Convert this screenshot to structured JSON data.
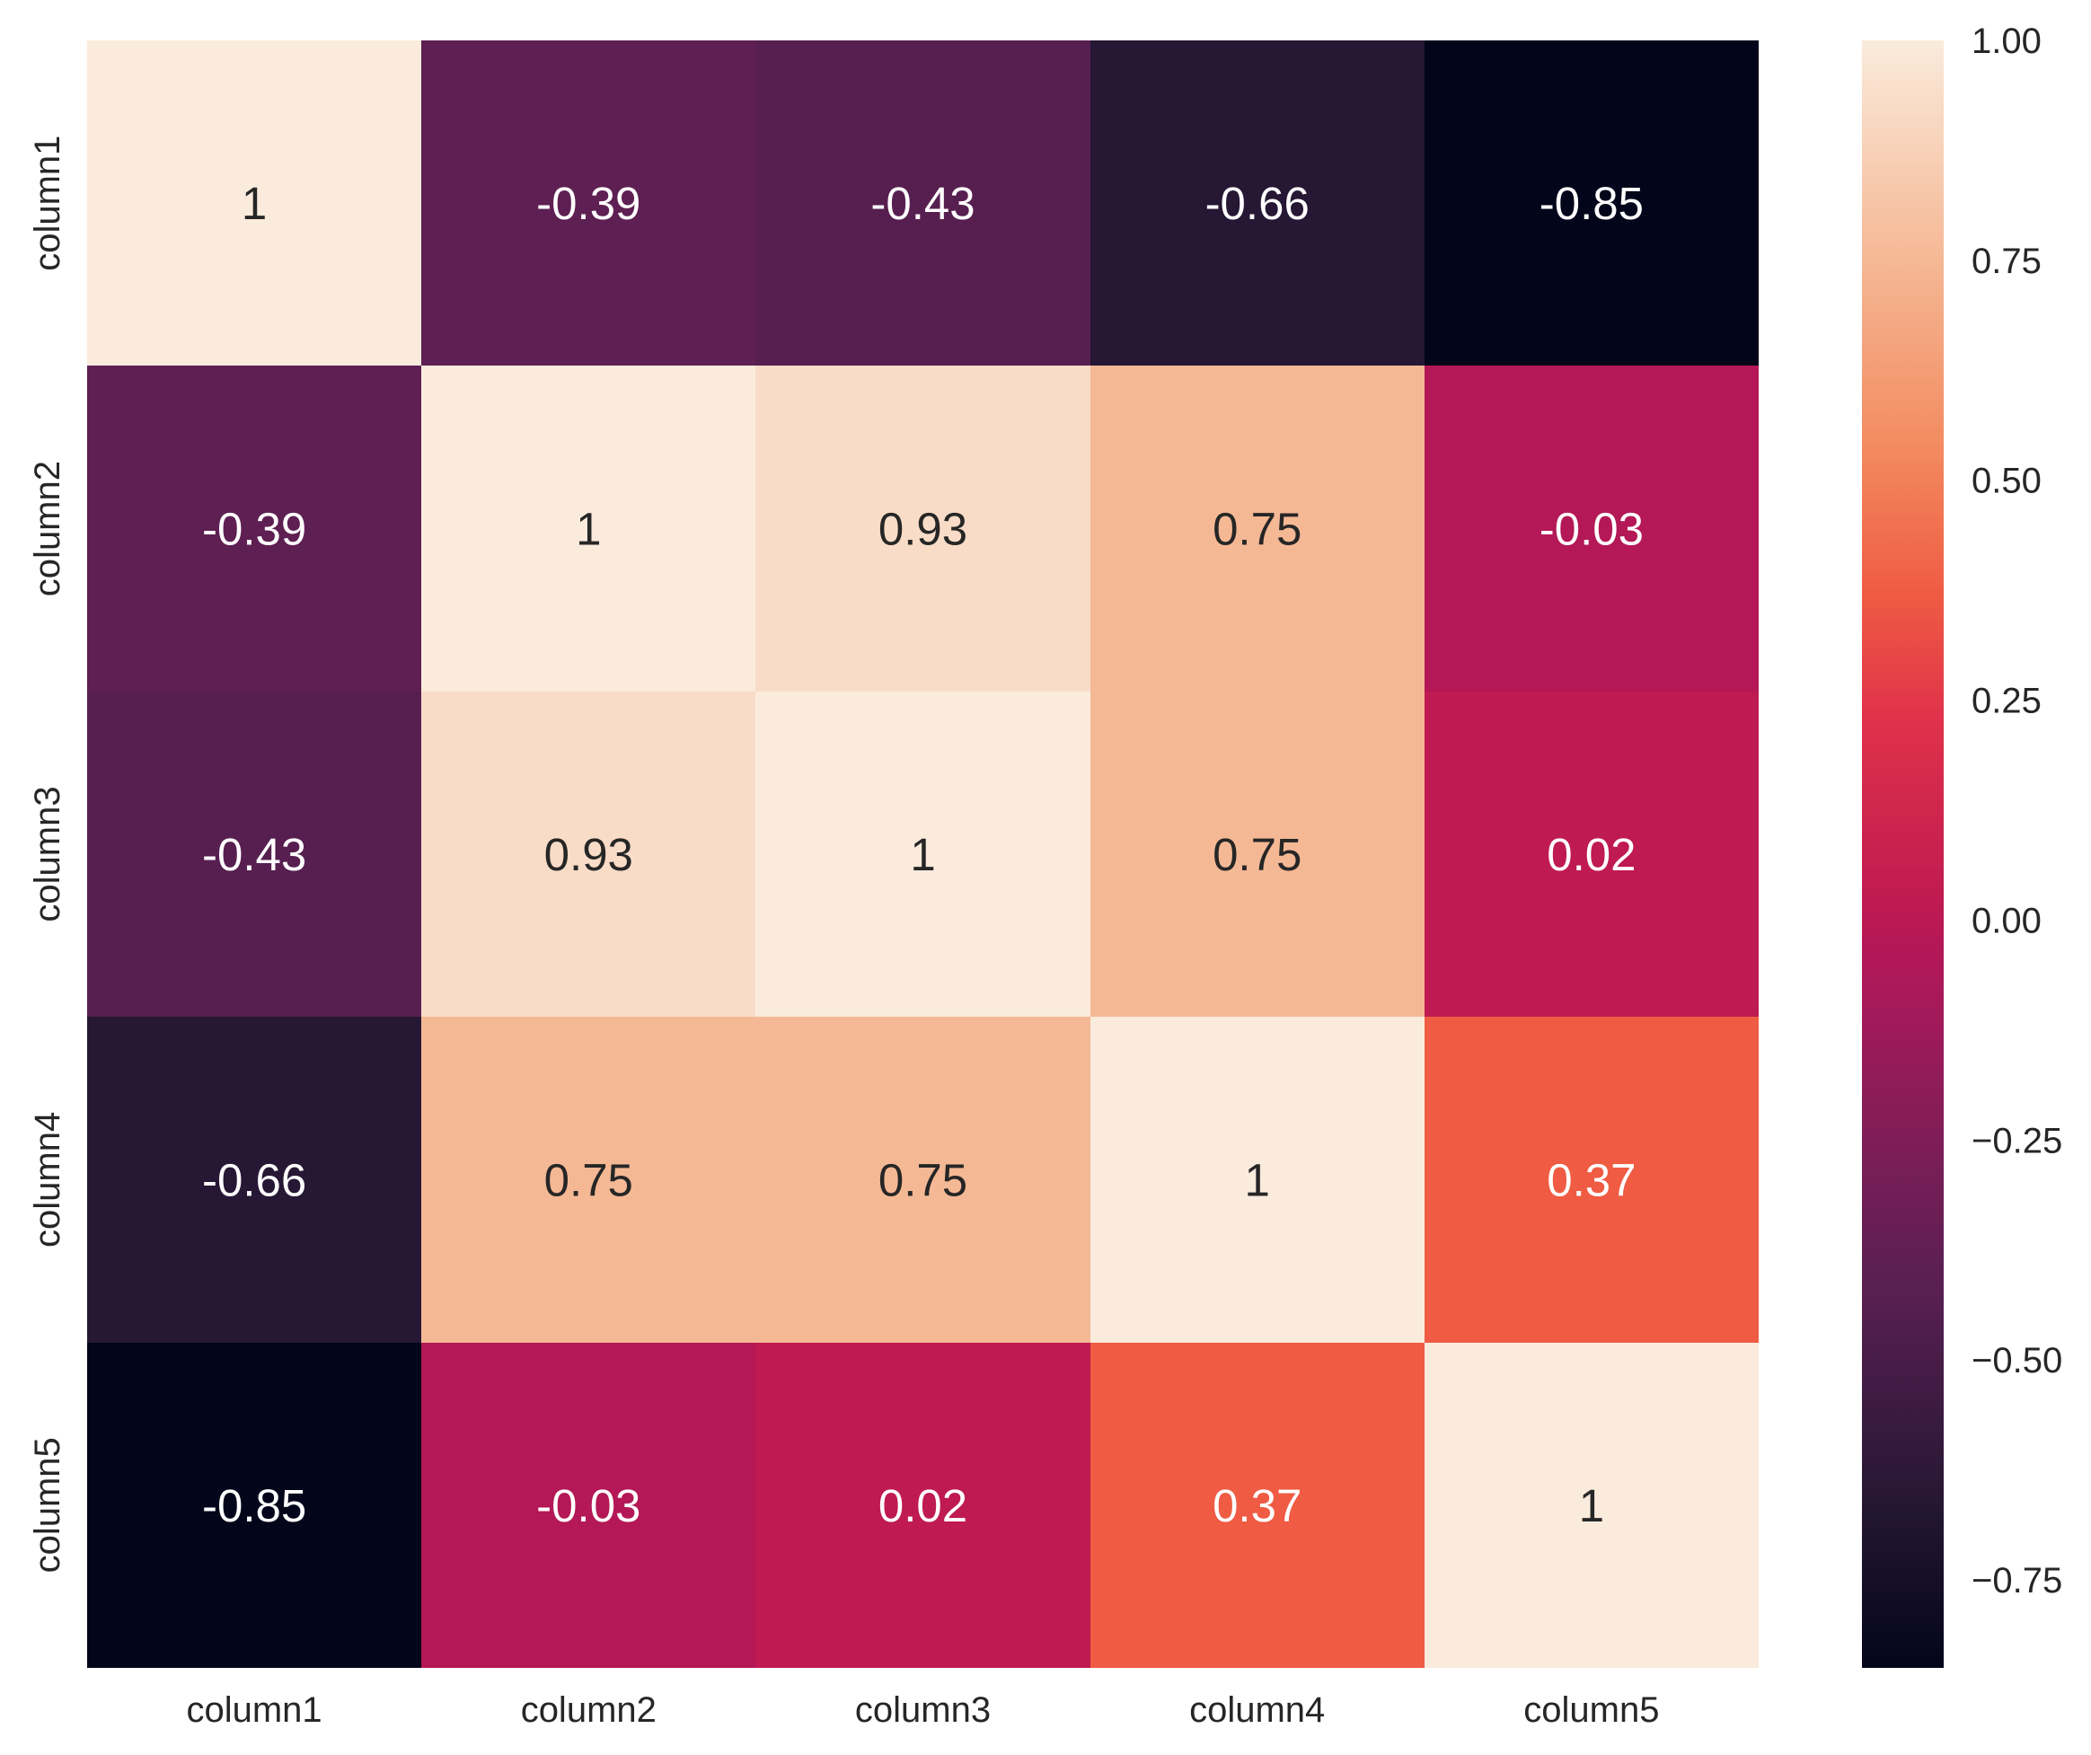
{
  "chart_data": {
    "type": "heatmap",
    "title": "",
    "xlabel": "",
    "ylabel": "",
    "x_categories": [
      "column1",
      "column2",
      "column3",
      "column4",
      "column5"
    ],
    "y_categories": [
      "column1",
      "column2",
      "column3",
      "column4",
      "column5"
    ],
    "values": [
      [
        1,
        -0.39,
        -0.43,
        -0.66,
        -0.85
      ],
      [
        -0.39,
        1,
        0.93,
        0.75,
        -0.03
      ],
      [
        -0.43,
        0.93,
        1,
        0.75,
        0.02
      ],
      [
        -0.66,
        0.75,
        0.75,
        1,
        0.37
      ],
      [
        -0.85,
        -0.03,
        0.02,
        0.37,
        1
      ]
    ],
    "annotations": [
      [
        "1",
        "-0.39",
        "-0.43",
        "-0.66",
        "-0.85"
      ],
      [
        "-0.39",
        "1",
        "0.93",
        "0.75",
        "-0.03"
      ],
      [
        "-0.43",
        "0.93",
        "1",
        "0.75",
        "0.02"
      ],
      [
        "-0.66",
        "0.75",
        "0.75",
        "1",
        "0.37"
      ],
      [
        "-0.85",
        "-0.03",
        "0.02",
        "0.37",
        "1"
      ]
    ],
    "vmin": -0.85,
    "vmax": 1.0,
    "colorbar": {
      "ticks": [
        1.0,
        0.75,
        0.5,
        0.25,
        0.0,
        -0.25,
        -0.5,
        -0.75
      ],
      "tick_labels": [
        "1.00",
        "0.75",
        "0.50",
        "0.25",
        "0.00",
        "−0.25",
        "−0.50",
        "−0.75"
      ],
      "position": "right"
    },
    "colormap": "rocket",
    "colormap_stops": [
      [
        0.0,
        "#03051A"
      ],
      [
        0.103,
        "#261734"
      ],
      [
        0.227,
        "#571F50"
      ],
      [
        0.249,
        "#5E1F52"
      ],
      [
        0.327,
        "#801D58"
      ],
      [
        0.418,
        "#AB195A"
      ],
      [
        0.443,
        "#B41856"
      ],
      [
        0.47,
        "#BF1A51"
      ],
      [
        0.584,
        "#E0324A"
      ],
      [
        0.659,
        "#EF5B43"
      ],
      [
        0.749,
        "#F38A5F"
      ],
      [
        0.865,
        "#F5B895"
      ],
      [
        0.962,
        "#F9DCC7"
      ],
      [
        1.0,
        "#FAEBDD"
      ]
    ],
    "text_colors": {
      "dark": "#262626",
      "light": "#FFFFFF"
    },
    "grid": false
  }
}
